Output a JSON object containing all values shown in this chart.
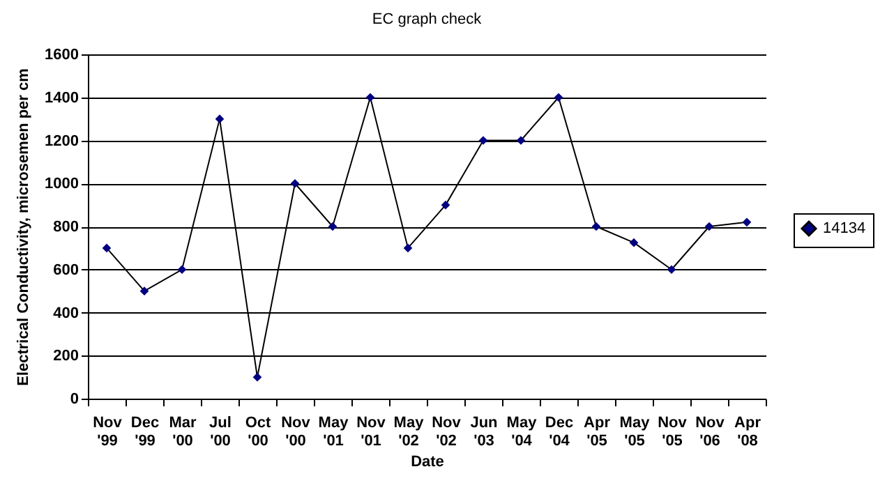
{
  "chart_data": {
    "type": "line",
    "title": "EC graph check",
    "xlabel": "Date",
    "ylabel": "Electrical Conductivity, microsemen per cm",
    "categories": [
      "Nov '99",
      "Dec '99",
      "Mar '00",
      "Jul '00",
      "Oct '00",
      "Nov '00",
      "May '01",
      "Nov '01",
      "May '02",
      "Nov '02",
      "Jun '03",
      "May '04",
      "Dec '04",
      "Apr '05",
      "May '05",
      "Nov '05",
      "Nov '06",
      "Apr '08"
    ],
    "series": [
      {
        "name": "14134",
        "color": "#000080",
        "values": [
          700,
          500,
          600,
          1300,
          100,
          1000,
          800,
          1400,
          700,
          900,
          1200,
          1200,
          1400,
          800,
          725,
          600,
          800,
          820
        ]
      }
    ],
    "ylim": [
      0,
      1600
    ],
    "yticks": [
      0,
      200,
      400,
      600,
      800,
      1000,
      1200,
      1400,
      1600
    ],
    "grid": "y",
    "legend": "right",
    "marker": "diamond",
    "line_style": "solid"
  }
}
